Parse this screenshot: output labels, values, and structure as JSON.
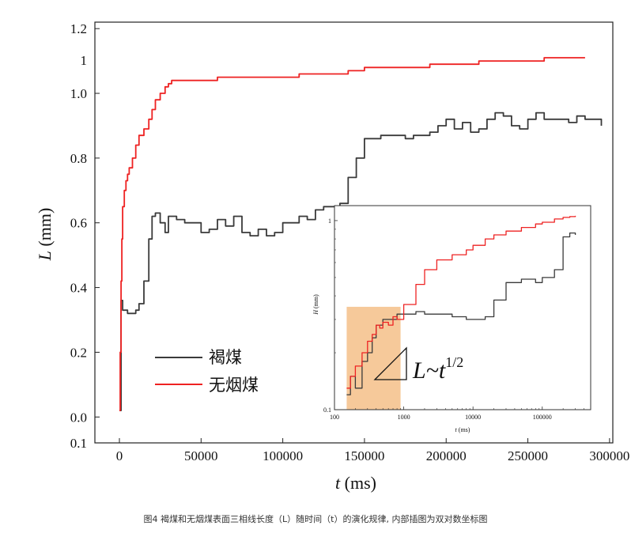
{
  "chart_data": [
    {
      "type": "line",
      "title": "",
      "xlabel_var": "t",
      "xlabel_unit": " (ms)",
      "ylabel_var": "L",
      "ylabel_unit": " (mm)",
      "xlim": [
        -15000,
        302000
      ],
      "ylim": [
        -0.08,
        1.22
      ],
      "x_ticks": [
        "0",
        "50000",
        "100000",
        "150000",
        "200000",
        "250000",
        "300000"
      ],
      "y_ticks": [
        "0.0",
        "0.2",
        "0.4",
        "0.6",
        "0.8",
        "1.0",
        "1.2"
      ],
      "y_ticks_extra": [
        "0.1",
        "1"
      ],
      "legend_placement": "bottom-left",
      "grid": false,
      "colors": {
        "lignite": "#3a3a3a",
        "anthracite": "#ee2222",
        "shade": "#f6c99a"
      },
      "series": [
        {
          "name": "褐煤",
          "color": "#3a3a3a",
          "x": [
            0,
            1000,
            2000,
            5000,
            10000,
            12000,
            15000,
            18000,
            20000,
            22000,
            25000,
            28000,
            30000,
            35000,
            40000,
            50000,
            55000,
            60000,
            65000,
            70000,
            75000,
            80000,
            85000,
            90000,
            95000,
            100000,
            110000,
            115000,
            120000,
            125000,
            130000,
            135000,
            140000,
            145000,
            150000,
            160000,
            170000,
            175000,
            180000,
            190000,
            195000,
            200000,
            205000,
            210000,
            215000,
            220000,
            225000,
            230000,
            235000,
            240000,
            245000,
            250000,
            255000,
            260000,
            270000,
            275000,
            280000,
            285000,
            290000,
            295000
          ],
          "y": [
            0.02,
            0.36,
            0.33,
            0.32,
            0.33,
            0.35,
            0.42,
            0.55,
            0.62,
            0.63,
            0.6,
            0.57,
            0.62,
            0.61,
            0.6,
            0.57,
            0.58,
            0.61,
            0.59,
            0.62,
            0.57,
            0.56,
            0.58,
            0.56,
            0.57,
            0.6,
            0.62,
            0.61,
            0.64,
            0.65,
            0.65,
            0.66,
            0.74,
            0.8,
            0.86,
            0.87,
            0.87,
            0.86,
            0.87,
            0.88,
            0.9,
            0.92,
            0.89,
            0.91,
            0.88,
            0.89,
            0.92,
            0.94,
            0.93,
            0.9,
            0.89,
            0.92,
            0.94,
            0.92,
            0.92,
            0.91,
            0.93,
            0.92,
            0.92,
            0.9
          ]
        },
        {
          "name": "无烟煤",
          "color": "#ee2222",
          "x": [
            0,
            500,
            1000,
            1500,
            2000,
            3000,
            4000,
            5000,
            6000,
            8000,
            10000,
            12000,
            15000,
            18000,
            20000,
            22000,
            25000,
            28000,
            30000,
            32000,
            35000,
            40000,
            50000,
            60000,
            70000,
            80000,
            90000,
            100000,
            110000,
            120000,
            130000,
            140000,
            150000,
            160000,
            170000,
            180000,
            190000,
            200000,
            210000,
            220000,
            230000,
            240000,
            250000,
            260000,
            270000,
            280000,
            285000
          ],
          "y": [
            0.02,
            0.2,
            0.42,
            0.55,
            0.65,
            0.7,
            0.73,
            0.75,
            0.77,
            0.8,
            0.84,
            0.87,
            0.89,
            0.92,
            0.95,
            0.98,
            1.0,
            1.02,
            1.03,
            1.04,
            1.04,
            1.04,
            1.04,
            1.05,
            1.05,
            1.05,
            1.05,
            1.05,
            1.06,
            1.06,
            1.06,
            1.07,
            1.08,
            1.08,
            1.08,
            1.08,
            1.09,
            1.09,
            1.09,
            1.1,
            1.1,
            1.1,
            1.1,
            1.11,
            1.11,
            1.11,
            1.11
          ]
        }
      ],
      "annotation_var": "L~t",
      "annotation_exp": "1/2"
    },
    {
      "type": "line",
      "title": "",
      "xscale": "log",
      "yscale": "log",
      "xlabel_var": "t",
      "xlabel_unit": " (ms)",
      "ylabel_var": "H",
      "ylabel_unit": " (mm)",
      "xlim": [
        100,
        500000
      ],
      "ylim": [
        0.1,
        1.2
      ],
      "x_ticks": [
        "100",
        "1000",
        "10000",
        "100000"
      ],
      "x_tick_values": [
        100,
        1000,
        10000,
        100000
      ],
      "y_ticks": [
        "0.1",
        "1"
      ],
      "y_tick_values": [
        0.1,
        1
      ],
      "shaded_region": {
        "x": [
          150,
          900
        ],
        "y": [
          0.1,
          0.35
        ]
      },
      "series": [
        {
          "name": "褐煤",
          "color": "#3a3a3a",
          "x": [
            150,
            170,
            200,
            250,
            300,
            350,
            400,
            500,
            600,
            800,
            1000,
            1500,
            2000,
            3000,
            5000,
            8000,
            10000,
            12000,
            15000,
            20000,
            30000,
            50000,
            80000,
            100000,
            120000,
            150000,
            200000,
            250000,
            300000
          ],
          "y": [
            0.12,
            0.15,
            0.13,
            0.18,
            0.2,
            0.24,
            0.28,
            0.3,
            0.3,
            0.32,
            0.32,
            0.33,
            0.32,
            0.32,
            0.31,
            0.3,
            0.3,
            0.3,
            0.31,
            0.38,
            0.47,
            0.49,
            0.47,
            0.5,
            0.5,
            0.55,
            0.82,
            0.86,
            0.84
          ]
        },
        {
          "name": "无烟煤",
          "color": "#ee2222",
          "x": [
            150,
            170,
            200,
            250,
            300,
            350,
            400,
            450,
            500,
            600,
            700,
            800,
            1000,
            1500,
            2000,
            3000,
            5000,
            8000,
            10000,
            15000,
            20000,
            30000,
            50000,
            80000,
            100000,
            150000,
            200000,
            250000,
            300000
          ],
          "y": [
            0.13,
            0.15,
            0.17,
            0.2,
            0.23,
            0.25,
            0.28,
            0.27,
            0.29,
            0.28,
            0.31,
            0.3,
            0.36,
            0.46,
            0.55,
            0.62,
            0.66,
            0.7,
            0.74,
            0.8,
            0.84,
            0.88,
            0.92,
            0.96,
            0.98,
            1.02,
            1.04,
            1.05,
            1.06
          ]
        }
      ]
    }
  ],
  "caption": "图4 褐煤和无烟煤表面三相线长度（L）随时间（t）的演化规律, 内部插图为双对数坐标图"
}
